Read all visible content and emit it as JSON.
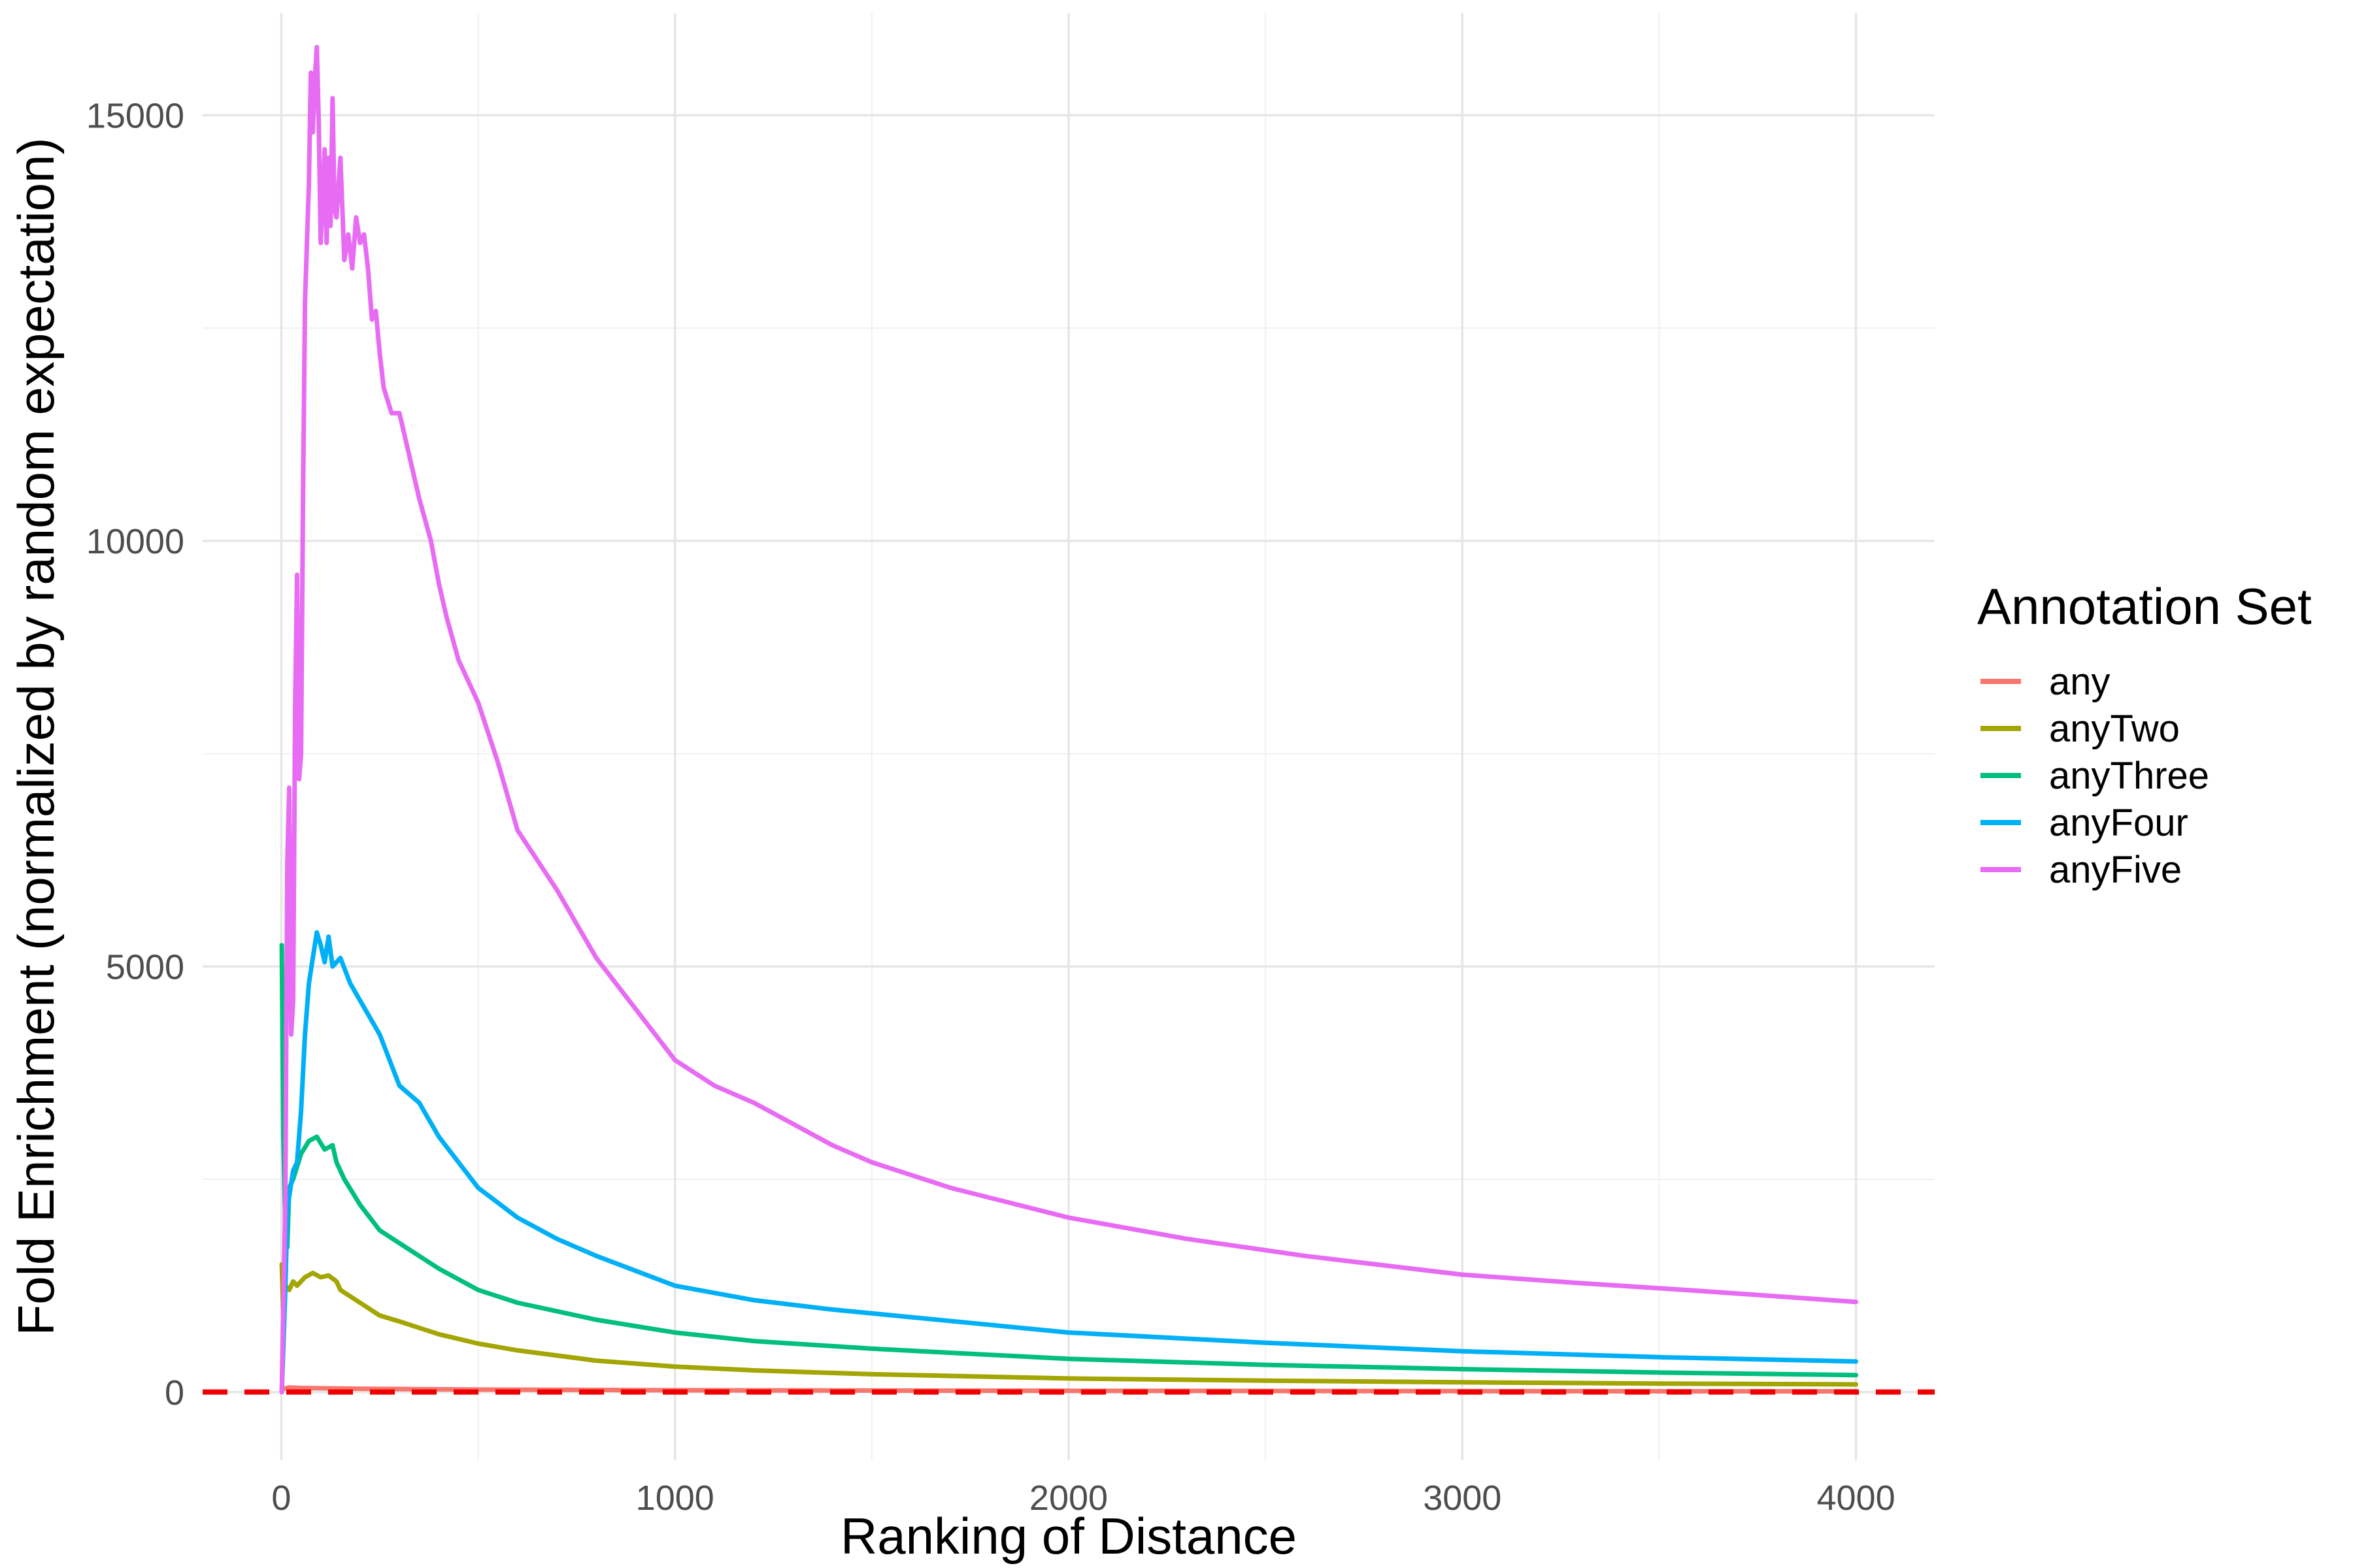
{
  "chart_data": {
    "type": "line",
    "title": "",
    "xlabel": "Ranking of Distance",
    "ylabel": "Fold Enrichment (normalized by random expectation)",
    "xlim": [
      -200,
      4200
    ],
    "ylim": [
      -800,
      16200
    ],
    "x_ticks": [
      0,
      1000,
      2000,
      3000,
      4000
    ],
    "x_tick_labels": [
      "0",
      "1000",
      "2000",
      "3000",
      "4000"
    ],
    "y_ticks": [
      0,
      5000,
      10000,
      15000
    ],
    "y_tick_labels": [
      "0",
      "5000",
      "10000",
      "15000"
    ],
    "grid": true,
    "legend": {
      "title": "Annotation Set",
      "position": "right"
    },
    "reference_line": {
      "y": 1,
      "color": "#ee0000",
      "style": "dashed"
    },
    "series": [
      {
        "name": "any",
        "color": "#F8766D",
        "points": [
          [
            1,
            35
          ],
          [
            20,
            55
          ],
          [
            50,
            48
          ],
          [
            100,
            45
          ],
          [
            200,
            40
          ],
          [
            500,
            30
          ],
          [
            1000,
            22
          ],
          [
            2000,
            15
          ],
          [
            3000,
            11
          ],
          [
            4000,
            9
          ]
        ]
      },
      {
        "name": "anyTwo",
        "color": "#A3A500",
        "points": [
          [
            1,
            1500
          ],
          [
            5,
            900
          ],
          [
            10,
            1250
          ],
          [
            20,
            1200
          ],
          [
            30,
            1300
          ],
          [
            40,
            1250
          ],
          [
            60,
            1350
          ],
          [
            80,
            1400
          ],
          [
            100,
            1350
          ],
          [
            120,
            1370
          ],
          [
            140,
            1300
          ],
          [
            150,
            1200
          ],
          [
            200,
            1050
          ],
          [
            250,
            900
          ],
          [
            300,
            830
          ],
          [
            400,
            680
          ],
          [
            500,
            570
          ],
          [
            600,
            490
          ],
          [
            800,
            370
          ],
          [
            1000,
            300
          ],
          [
            1200,
            255
          ],
          [
            1500,
            210
          ],
          [
            2000,
            160
          ],
          [
            2500,
            135
          ],
          [
            3000,
            115
          ],
          [
            3500,
            100
          ],
          [
            4000,
            90
          ]
        ]
      },
      {
        "name": "anyThree",
        "color": "#00BF7D",
        "points": [
          [
            1,
            5250
          ],
          [
            5,
            3000
          ],
          [
            10,
            2000
          ],
          [
            15,
            1700
          ],
          [
            20,
            2400
          ],
          [
            30,
            2500
          ],
          [
            50,
            2800
          ],
          [
            70,
            2950
          ],
          [
            90,
            3000
          ],
          [
            110,
            2850
          ],
          [
            130,
            2900
          ],
          [
            140,
            2700
          ],
          [
            160,
            2500
          ],
          [
            200,
            2200
          ],
          [
            250,
            1900
          ],
          [
            300,
            1750
          ],
          [
            400,
            1450
          ],
          [
            500,
            1200
          ],
          [
            600,
            1050
          ],
          [
            800,
            850
          ],
          [
            1000,
            700
          ],
          [
            1200,
            600
          ],
          [
            1500,
            510
          ],
          [
            2000,
            390
          ],
          [
            2500,
            320
          ],
          [
            3000,
            270
          ],
          [
            3500,
            230
          ],
          [
            4000,
            200
          ]
        ]
      },
      {
        "name": "anyFour",
        "color": "#00B0F6",
        "points": [
          [
            1,
            0
          ],
          [
            10,
            1200
          ],
          [
            15,
            2100
          ],
          [
            20,
            2300
          ],
          [
            30,
            2600
          ],
          [
            40,
            2700
          ],
          [
            50,
            3300
          ],
          [
            60,
            4200
          ],
          [
            70,
            4800
          ],
          [
            80,
            5100
          ],
          [
            90,
            5400
          ],
          [
            100,
            5250
          ],
          [
            110,
            5050
          ],
          [
            120,
            5350
          ],
          [
            130,
            5000
          ],
          [
            150,
            5100
          ],
          [
            175,
            4800
          ],
          [
            200,
            4600
          ],
          [
            250,
            4200
          ],
          [
            300,
            3600
          ],
          [
            350,
            3400
          ],
          [
            400,
            3000
          ],
          [
            450,
            2700
          ],
          [
            500,
            2400
          ],
          [
            600,
            2050
          ],
          [
            700,
            1800
          ],
          [
            800,
            1600
          ],
          [
            1000,
            1250
          ],
          [
            1200,
            1080
          ],
          [
            1400,
            970
          ],
          [
            1600,
            880
          ],
          [
            1800,
            790
          ],
          [
            2000,
            700
          ],
          [
            2500,
            580
          ],
          [
            3000,
            480
          ],
          [
            3500,
            410
          ],
          [
            4000,
            360
          ]
        ]
      },
      {
        "name": "anyFive",
        "color": "#E76BF3",
        "points": [
          [
            1,
            0
          ],
          [
            10,
            2200
          ],
          [
            15,
            6200
          ],
          [
            20,
            7100
          ],
          [
            25,
            4200
          ],
          [
            30,
            4600
          ],
          [
            35,
            8000
          ],
          [
            40,
            9600
          ],
          [
            45,
            7200
          ],
          [
            50,
            7500
          ],
          [
            55,
            10500
          ],
          [
            60,
            12800
          ],
          [
            65,
            13500
          ],
          [
            70,
            14200
          ],
          [
            75,
            15500
          ],
          [
            80,
            14800
          ],
          [
            85,
            15400
          ],
          [
            90,
            15800
          ],
          [
            95,
            14900
          ],
          [
            100,
            13500
          ],
          [
            105,
            14000
          ],
          [
            110,
            14600
          ],
          [
            115,
            13500
          ],
          [
            120,
            14500
          ],
          [
            125,
            13700
          ],
          [
            130,
            15200
          ],
          [
            135,
            13900
          ],
          [
            140,
            13800
          ],
          [
            150,
            14500
          ],
          [
            160,
            13300
          ],
          [
            170,
            13600
          ],
          [
            180,
            13200
          ],
          [
            190,
            13800
          ],
          [
            200,
            13500
          ],
          [
            210,
            13600
          ],
          [
            220,
            13200
          ],
          [
            230,
            12600
          ],
          [
            240,
            12700
          ],
          [
            250,
            12200
          ],
          [
            260,
            11800
          ],
          [
            280,
            11500
          ],
          [
            300,
            11500
          ],
          [
            320,
            11100
          ],
          [
            350,
            10500
          ],
          [
            380,
            10000
          ],
          [
            400,
            9500
          ],
          [
            420,
            9100
          ],
          [
            450,
            8600
          ],
          [
            500,
            8100
          ],
          [
            550,
            7400
          ],
          [
            600,
            6600
          ],
          [
            700,
            5900
          ],
          [
            800,
            5100
          ],
          [
            900,
            4500
          ],
          [
            1000,
            3900
          ],
          [
            1100,
            3600
          ],
          [
            1200,
            3400
          ],
          [
            1300,
            3150
          ],
          [
            1400,
            2900
          ],
          [
            1500,
            2700
          ],
          [
            1700,
            2400
          ],
          [
            2000,
            2050
          ],
          [
            2300,
            1800
          ],
          [
            2600,
            1600
          ],
          [
            3000,
            1380
          ],
          [
            3300,
            1280
          ],
          [
            3600,
            1190
          ],
          [
            4000,
            1060
          ]
        ]
      }
    ]
  }
}
